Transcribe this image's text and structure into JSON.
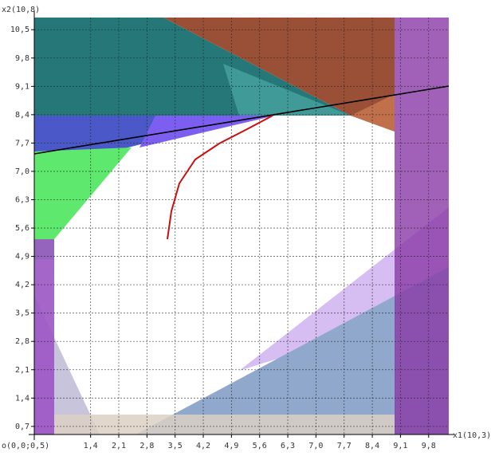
{
  "chart_data": {
    "type": "region",
    "x_label": "x1(10,3)",
    "y_label": "x2(10,8)",
    "origin_label": "o(0,0;0,5)",
    "xlim": [
      0,
      10.3
    ],
    "ylim": [
      0.5,
      10.8
    ],
    "grid": true,
    "xticks": [
      {
        "value": 1.4,
        "label": "1,4"
      },
      {
        "value": 2.1,
        "label": "2,1"
      },
      {
        "value": 2.8,
        "label": "2,8"
      },
      {
        "value": 3.5,
        "label": "3,5"
      },
      {
        "value": 4.2,
        "label": "4,2"
      },
      {
        "value": 4.9,
        "label": "4,9"
      },
      {
        "value": 5.6,
        "label": "5,6"
      },
      {
        "value": 6.3,
        "label": "6,3"
      },
      {
        "value": 7,
        "label": "7,0"
      },
      {
        "value": 7.7,
        "label": "7,7"
      },
      {
        "value": 8.4,
        "label": "8,4"
      },
      {
        "value": 9.1,
        "label": "9,1"
      },
      {
        "value": 9.8,
        "label": "9,8"
      }
    ],
    "yticks": [
      {
        "value": 0.7,
        "label": "0,7"
      },
      {
        "value": 1.4,
        "label": "1,4"
      },
      {
        "value": 2.1,
        "label": "2,1"
      },
      {
        "value": 2.8,
        "label": "2,8"
      },
      {
        "value": 3.5,
        "label": "3,5"
      },
      {
        "value": 4.2,
        "label": "4,2"
      },
      {
        "value": 4.9,
        "label": "4,9"
      },
      {
        "value": 5.6,
        "label": "5,6"
      },
      {
        "value": 6.3,
        "label": "6,3"
      },
      {
        "value": 7,
        "label": "7,0"
      },
      {
        "value": 7.7,
        "label": "7,7"
      },
      {
        "value": 8.4,
        "label": "8,4"
      },
      {
        "value": 9.1,
        "label": "9,1"
      },
      {
        "value": 9.8,
        "label": "9,8"
      },
      {
        "value": 10.5,
        "label": "10,5"
      }
    ]
  }
}
